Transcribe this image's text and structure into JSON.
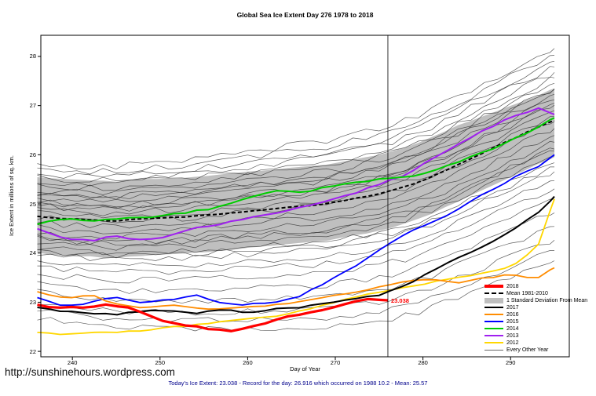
{
  "page": {
    "url_text": "http://sunshinehours.wordpress.com",
    "footer": "Today's Ice Extent: 23.038 - Record for the day: 26.916 which occurred on 1988 10.2 - Mean: 25.57"
  },
  "chart_data": {
    "type": "line",
    "title": "Global Sea Ice Extent Day 276 1978 to 2018",
    "xlabel": "Day of Year",
    "ylabel": "Ice Extent in millions of sq. km.",
    "xlim": [
      236.4,
      296.7
    ],
    "ylim": [
      21.89,
      28.43
    ],
    "xticks": [
      240,
      250,
      260,
      270,
      280,
      290
    ],
    "yticks": [
      22,
      23,
      24,
      25,
      26,
      27,
      28
    ],
    "x_common": [
      236,
      239,
      242,
      245,
      248,
      251,
      254,
      257,
      260,
      263,
      266,
      269,
      272,
      275,
      278,
      281,
      284,
      287,
      290,
      293,
      295
    ],
    "vline_x": 276,
    "annotation": {
      "text": "23.038",
      "x": 276,
      "y": 23.038,
      "color": "#FF0000"
    },
    "stats": {
      "today": 23.038,
      "record": 26.916,
      "record_date": "1988 10.2",
      "mean": 25.57
    },
    "band": {
      "label": "1 Standard Deviation From Mean",
      "color": "#BFBFBF",
      "upper": [
        25.55,
        25.5,
        25.48,
        25.45,
        25.5,
        25.52,
        25.55,
        25.6,
        25.65,
        25.7,
        25.75,
        25.8,
        25.9,
        26.0,
        26.15,
        26.35,
        26.6,
        26.8,
        27.0,
        27.2,
        27.35
      ],
      "lower": [
        24.0,
        23.95,
        23.93,
        23.9,
        23.95,
        23.97,
        24.0,
        24.05,
        24.1,
        24.15,
        24.2,
        24.25,
        24.35,
        24.45,
        24.6,
        24.8,
        25.05,
        25.3,
        25.55,
        25.8,
        25.95
      ]
    },
    "mean": {
      "label": "Mean 1981-2010",
      "color": "#000000",
      "y": [
        24.75,
        24.7,
        24.68,
        24.65,
        24.7,
        24.72,
        24.75,
        24.8,
        24.85,
        24.9,
        24.95,
        25.0,
        25.1,
        25.2,
        25.35,
        25.55,
        25.8,
        26.05,
        26.3,
        26.55,
        26.7
      ]
    },
    "series": [
      {
        "name": "2018",
        "color": "#FF0000",
        "width": 3.2,
        "x": [
          236,
          238,
          240,
          242,
          244,
          246,
          248,
          250,
          252,
          254,
          256,
          258,
          260,
          262,
          264,
          266,
          268,
          270,
          272,
          274,
          276
        ],
        "y": [
          22.95,
          22.9,
          22.92,
          22.88,
          22.95,
          22.9,
          22.8,
          22.62,
          22.55,
          22.5,
          22.45,
          22.42,
          22.5,
          22.58,
          22.68,
          22.75,
          22.82,
          22.92,
          23.0,
          23.08,
          23.038
        ]
      },
      {
        "name": "2017",
        "color": "#000000",
        "width": 2,
        "y": [
          22.9,
          22.82,
          22.78,
          22.75,
          22.82,
          22.85,
          22.78,
          22.85,
          22.8,
          22.85,
          22.9,
          23.0,
          23.05,
          23.15,
          23.35,
          23.62,
          23.9,
          24.15,
          24.45,
          24.8,
          25.15
        ]
      },
      {
        "name": "2016",
        "color": "#FF8C00",
        "width": 1.8,
        "y": [
          23.2,
          23.08,
          23.15,
          22.95,
          22.9,
          22.95,
          22.88,
          22.85,
          22.9,
          22.95,
          23.0,
          23.1,
          23.2,
          23.3,
          23.42,
          23.45,
          23.38,
          23.5,
          23.55,
          23.48,
          23.7
        ]
      },
      {
        "name": "2015",
        "color": "#0000FF",
        "width": 1.8,
        "y": [
          23.1,
          22.9,
          23.0,
          23.1,
          23.0,
          23.05,
          23.15,
          23.0,
          22.95,
          23.0,
          23.12,
          23.42,
          23.7,
          24.05,
          24.4,
          24.6,
          24.9,
          25.2,
          25.5,
          25.75,
          26.0
        ]
      },
      {
        "name": "2014",
        "color": "#00CD00",
        "width": 2,
        "y": [
          24.6,
          24.7,
          24.65,
          24.7,
          24.72,
          24.78,
          24.85,
          24.95,
          25.12,
          25.28,
          25.22,
          25.35,
          25.42,
          25.5,
          25.55,
          25.65,
          25.85,
          26.05,
          26.3,
          26.55,
          26.75
        ]
      },
      {
        "name": "2013",
        "color": "#A020F0",
        "width": 2,
        "y": [
          24.5,
          24.3,
          24.25,
          24.35,
          24.25,
          24.35,
          24.5,
          24.6,
          24.7,
          24.82,
          24.92,
          25.05,
          25.2,
          25.4,
          25.6,
          25.9,
          26.2,
          26.5,
          26.75,
          26.95,
          26.82
        ]
      },
      {
        "name": "2012",
        "color": "#FFD700",
        "width": 1.8,
        "y": [
          22.4,
          22.35,
          22.4,
          22.38,
          22.42,
          22.48,
          22.55,
          22.6,
          22.65,
          22.72,
          22.82,
          22.95,
          23.1,
          23.2,
          23.32,
          23.4,
          23.5,
          23.6,
          23.72,
          24.1,
          25.1
        ]
      }
    ],
    "background": {
      "label": "Every Other Year",
      "color": "#2E2E2E",
      "offsets": [
        -2.05,
        -1.9,
        -1.75,
        -1.55,
        -1.35,
        -1.15,
        -1.0,
        -0.88,
        -0.75,
        -0.62,
        -0.52,
        -0.42,
        -0.32,
        -0.22,
        -0.12,
        -0.02,
        0.06,
        0.14,
        0.22,
        0.3,
        0.38,
        0.46,
        0.54,
        0.62,
        0.7,
        0.78,
        0.86,
        0.95,
        1.05,
        -0.45,
        0.25,
        -0.68,
        0.45
      ]
    },
    "legend": [
      {
        "label": "2018",
        "type": "thick",
        "color": "#FF0000"
      },
      {
        "label": "Mean 1981-2010",
        "type": "dashed",
        "color": "#000000"
      },
      {
        "label": "1 Standard Deviation From Mean",
        "type": "band",
        "color": "#BFBFBF"
      },
      {
        "label": "2017",
        "type": "line",
        "color": "#000000"
      },
      {
        "label": "2016",
        "type": "line",
        "color": "#FF8C00"
      },
      {
        "label": "2015",
        "type": "line",
        "color": "#0000FF"
      },
      {
        "label": "2014",
        "type": "line",
        "color": "#00CD00"
      },
      {
        "label": "2013",
        "type": "line",
        "color": "#A020F0"
      },
      {
        "label": "2012",
        "type": "line",
        "color": "#FFD700"
      },
      {
        "label": "Every Other Year",
        "type": "thin",
        "color": "#666666"
      }
    ]
  }
}
